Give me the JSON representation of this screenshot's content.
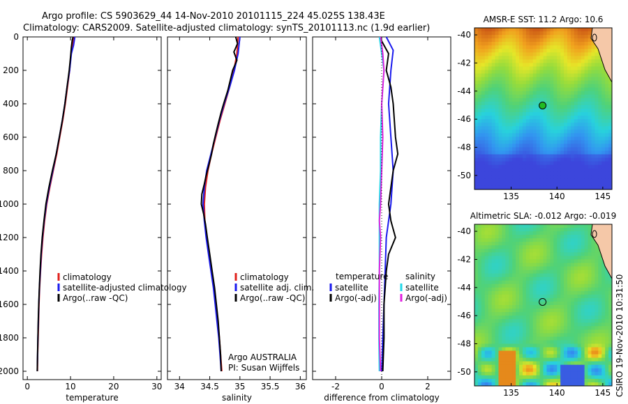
{
  "header": {
    "line1": "Argo profile: CS 5903629_44 14-Nov-2010 20101115_224 45.025S 138.43E",
    "line2": "Climatology: CARS2009. Satellite-adjusted climatology: synTS_20101113.nc (1.9d earlier)"
  },
  "footer": {
    "stamp": "CSIRO 19-Nov-2010 10:31:50"
  },
  "colors": {
    "climatology": "#e0201b",
    "satellite": "#1a1aee",
    "argo": "#000000",
    "sat_salinity": "#22d8e8",
    "argo_salinity": "#e020e0"
  },
  "chart_data": [
    {
      "type": "line",
      "id": "temperature",
      "xlabel": "temperature",
      "xlim": [
        -1,
        31
      ],
      "xticks": [
        0,
        10,
        20,
        30
      ],
      "ylim": [
        0,
        2050
      ],
      "yticks": [
        0,
        200,
        400,
        600,
        800,
        1000,
        1200,
        1400,
        1600,
        1800,
        2000
      ],
      "y_inverted": true,
      "legend": [
        "climatology",
        "satellite-adjusted climatology",
        "Argo(..raw -QC)"
      ],
      "series": [
        {
          "name": "climatology",
          "color": "#e0201b",
          "points": [
            [
              10.8,
              0
            ],
            [
              10.5,
              50
            ],
            [
              10.1,
              100
            ],
            [
              9.8,
              200
            ],
            [
              9.3,
              300
            ],
            [
              8.8,
              400
            ],
            [
              8.2,
              500
            ],
            [
              7.5,
              600
            ],
            [
              6.8,
              700
            ],
            [
              6.0,
              800
            ],
            [
              5.2,
              900
            ],
            [
              4.5,
              1000
            ],
            [
              4.0,
              1100
            ],
            [
              3.6,
              1200
            ],
            [
              3.3,
              1300
            ],
            [
              3.05,
              1400
            ],
            [
              2.85,
              1500
            ],
            [
              2.7,
              1600
            ],
            [
              2.6,
              1700
            ],
            [
              2.5,
              1800
            ],
            [
              2.4,
              1900
            ],
            [
              2.35,
              2000
            ]
          ]
        },
        {
          "name": "satellite",
          "color": "#1a1aee",
          "points": [
            [
              11.0,
              0
            ],
            [
              10.7,
              50
            ],
            [
              10.2,
              100
            ],
            [
              9.8,
              200
            ],
            [
              9.2,
              300
            ],
            [
              8.7,
              400
            ],
            [
              8.1,
              500
            ],
            [
              7.4,
              600
            ],
            [
              6.7,
              700
            ],
            [
              5.9,
              800
            ],
            [
              5.1,
              900
            ],
            [
              4.4,
              1000
            ],
            [
              3.9,
              1100
            ],
            [
              3.5,
              1200
            ],
            [
              3.2,
              1300
            ],
            [
              3.0,
              1400
            ],
            [
              2.8,
              1500
            ],
            [
              2.65,
              1600
            ],
            [
              2.55,
              1700
            ],
            [
              2.45,
              1800
            ],
            [
              2.38,
              1900
            ],
            [
              2.3,
              2000
            ]
          ]
        },
        {
          "name": "argo",
          "color": "#000000",
          "points": [
            [
              10.6,
              0
            ],
            [
              10.4,
              20
            ],
            [
              10.2,
              60
            ],
            [
              10.0,
              120
            ],
            [
              9.7,
              200
            ],
            [
              9.2,
              300
            ],
            [
              8.7,
              400
            ],
            [
              8.1,
              500
            ],
            [
              7.4,
              600
            ],
            [
              6.7,
              700
            ],
            [
              5.8,
              800
            ],
            [
              5.0,
              900
            ],
            [
              4.3,
              1000
            ],
            [
              3.85,
              1100
            ],
            [
              3.45,
              1200
            ],
            [
              3.15,
              1300
            ],
            [
              2.95,
              1400
            ],
            [
              2.78,
              1500
            ],
            [
              2.63,
              1600
            ],
            [
              2.52,
              1700
            ],
            [
              2.44,
              1800
            ],
            [
              2.36,
              1900
            ],
            [
              2.3,
              2000
            ]
          ]
        }
      ]
    },
    {
      "type": "line",
      "id": "salinity",
      "xlabel": "salinity",
      "xlim": [
        33.8,
        36.1
      ],
      "xticks": [
        34,
        34.5,
        35,
        35.5,
        36
      ],
      "ylim": [
        0,
        2050
      ],
      "y_inverted": true,
      "legend": [
        "climatology",
        "satellite adj. clim.",
        "Argo(..raw -QC)"
      ],
      "annotation": [
        "Argo AUSTRALIA",
        "PI: Susan Wijffels"
      ],
      "series": [
        {
          "name": "climatology",
          "color": "#e0201b",
          "points": [
            [
              34.97,
              0
            ],
            [
              34.95,
              100
            ],
            [
              34.9,
              200
            ],
            [
              34.83,
              300
            ],
            [
              34.75,
              400
            ],
            [
              34.67,
              500
            ],
            [
              34.6,
              600
            ],
            [
              34.53,
              700
            ],
            [
              34.47,
              800
            ],
            [
              34.43,
              900
            ],
            [
              34.41,
              1000
            ],
            [
              34.42,
              1100
            ],
            [
              34.45,
              1200
            ],
            [
              34.49,
              1300
            ],
            [
              34.53,
              1400
            ],
            [
              34.57,
              1500
            ],
            [
              34.6,
              1600
            ],
            [
              34.63,
              1700
            ],
            [
              34.66,
              1800
            ],
            [
              34.68,
              1900
            ],
            [
              34.7,
              2000
            ]
          ]
        },
        {
          "name": "satellite",
          "color": "#1a1aee",
          "points": [
            [
              35.0,
              0
            ],
            [
              34.97,
              100
            ],
            [
              34.91,
              200
            ],
            [
              34.83,
              300
            ],
            [
              34.74,
              400
            ],
            [
              34.66,
              500
            ],
            [
              34.59,
              600
            ],
            [
              34.52,
              700
            ],
            [
              34.45,
              800
            ],
            [
              34.41,
              900
            ],
            [
              34.39,
              1000
            ],
            [
              34.41,
              1100
            ],
            [
              34.44,
              1200
            ],
            [
              34.48,
              1300
            ],
            [
              34.52,
              1400
            ],
            [
              34.56,
              1500
            ],
            [
              34.59,
              1600
            ],
            [
              34.62,
              1700
            ],
            [
              34.65,
              1800
            ],
            [
              34.67,
              1900
            ],
            [
              34.69,
              2000
            ]
          ]
        },
        {
          "name": "argo",
          "color": "#000000",
          "points": [
            [
              34.93,
              0
            ],
            [
              34.96,
              40
            ],
            [
              34.9,
              90
            ],
            [
              34.95,
              140
            ],
            [
              34.88,
              200
            ],
            [
              34.84,
              260
            ],
            [
              34.8,
              320
            ],
            [
              34.73,
              400
            ],
            [
              34.69,
              450
            ],
            [
              34.64,
              520
            ],
            [
              34.6,
              580
            ],
            [
              34.56,
              640
            ],
            [
              34.53,
              700
            ],
            [
              34.49,
              760
            ],
            [
              34.44,
              830
            ],
            [
              34.41,
              880
            ],
            [
              34.37,
              940
            ],
            [
              34.36,
              1000
            ],
            [
              34.4,
              1060
            ],
            [
              34.43,
              1120
            ],
            [
              34.46,
              1200
            ],
            [
              34.5,
              1300
            ],
            [
              34.54,
              1400
            ],
            [
              34.58,
              1500
            ],
            [
              34.61,
              1600
            ],
            [
              34.64,
              1700
            ],
            [
              34.66,
              1800
            ],
            [
              34.68,
              1900
            ],
            [
              34.69,
              2000
            ]
          ]
        }
      ]
    },
    {
      "type": "line",
      "id": "difference",
      "xlabel": "difference from climatology",
      "xlim": [
        -3,
        3
      ],
      "xticks": [
        -2,
        0,
        2
      ],
      "ylim": [
        0,
        2050
      ],
      "y_inverted": true,
      "legend_groups": [
        {
          "title": "temperature",
          "items": [
            "satellite",
            "Argo(-adj)"
          ]
        },
        {
          "title": "salinity",
          "items": [
            "satellite",
            "Argo(-adj)"
          ]
        }
      ],
      "series": [
        {
          "name": "temperature satellite",
          "color": "#1a1aee",
          "points": [
            [
              0.2,
              0
            ],
            [
              0.5,
              80
            ],
            [
              0.4,
              200
            ],
            [
              0.3,
              400
            ],
            [
              0.4,
              600
            ],
            [
              0.5,
              800
            ],
            [
              0.4,
              1000
            ],
            [
              0.2,
              1200
            ],
            [
              0.15,
              1400
            ],
            [
              0.1,
              1600
            ],
            [
              0.05,
              1800
            ],
            [
              0.0,
              2000
            ]
          ]
        },
        {
          "name": "temperature argo",
          "color": "#000000",
          "points": [
            [
              -0.1,
              0
            ],
            [
              0.3,
              100
            ],
            [
              0.2,
              200
            ],
            [
              0.4,
              300
            ],
            [
              0.5,
              400
            ],
            [
              0.6,
              600
            ],
            [
              0.7,
              700
            ],
            [
              0.5,
              800
            ],
            [
              0.4,
              900
            ],
            [
              0.3,
              1000
            ],
            [
              0.4,
              1100
            ],
            [
              0.6,
              1200
            ],
            [
              0.3,
              1300
            ],
            [
              0.2,
              1400
            ],
            [
              0.15,
              1500
            ],
            [
              0.1,
              1600
            ],
            [
              0.1,
              1800
            ],
            [
              0.05,
              2000
            ]
          ]
        },
        {
          "name": "salinity satellite",
          "color": "#22d8e8",
          "points": [
            [
              -0.1,
              0
            ],
            [
              0.0,
              100
            ],
            [
              0.1,
              200
            ],
            [
              0.0,
              400
            ],
            [
              -0.05,
              600
            ],
            [
              -0.05,
              800
            ],
            [
              -0.1,
              1000
            ],
            [
              -0.1,
              1200
            ],
            [
              -0.1,
              1400
            ],
            [
              -0.12,
              1600
            ],
            [
              -0.12,
              1800
            ],
            [
              -0.1,
              2000
            ]
          ]
        },
        {
          "name": "salinity argo",
          "color": "#e020e0",
          "points": [
            [
              -0.05,
              0
            ],
            [
              0.05,
              100
            ],
            [
              0.1,
              200
            ],
            [
              0.0,
              400
            ],
            [
              0.05,
              600
            ],
            [
              0.0,
              800
            ],
            [
              -0.05,
              1000
            ],
            [
              -0.1,
              1100
            ],
            [
              -0.05,
              1200
            ],
            [
              -0.1,
              1400
            ],
            [
              -0.1,
              1600
            ],
            [
              -0.1,
              1800
            ],
            [
              -0.05,
              2000
            ]
          ]
        }
      ]
    },
    {
      "type": "heatmap",
      "id": "sst-map",
      "title": "AMSR-E SST: 11.2  Argo: 10.6",
      "xticks": [
        135,
        140,
        145
      ],
      "yticks": [
        -40,
        -42,
        -44,
        -46,
        -48,
        -50
      ],
      "xlim": [
        131,
        146
      ],
      "ylim": [
        -51,
        -39.5
      ],
      "marker": [
        138.43,
        -45.025
      ]
    },
    {
      "type": "heatmap",
      "id": "sla-map",
      "title": "Altimetric SLA: -0.012  Argo: -0.019",
      "xticks": [
        135,
        140,
        145
      ],
      "yticks": [
        -40,
        -42,
        -44,
        -46,
        -48,
        -50
      ],
      "xlim": [
        131,
        146
      ],
      "ylim": [
        -51,
        -39.5
      ],
      "marker": [
        138.43,
        -45.025
      ]
    }
  ]
}
